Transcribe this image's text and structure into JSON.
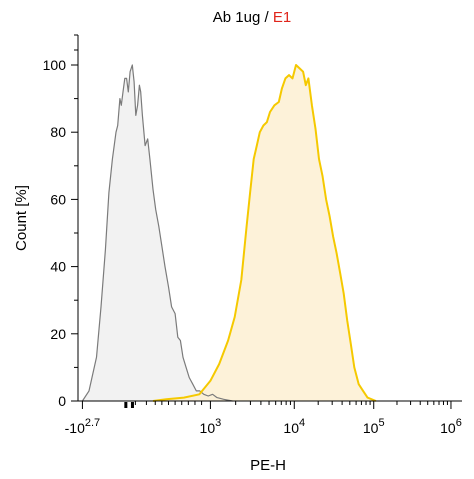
{
  "chart_data": {
    "type": "area",
    "title_parts": [
      {
        "text": "Ab 1ug / ",
        "color": "#000000"
      },
      {
        "text": "E1",
        "color": "#e0251b"
      }
    ],
    "xlabel": "PE-H",
    "ylabel": "Count [%]",
    "xscale": "biexponential",
    "xlim_exponent": [
      -2.7,
      6
    ],
    "ylim": [
      0,
      100
    ],
    "grid": false,
    "x_ticks": [
      {
        "base": "-10",
        "exp": "2.7"
      },
      {
        "base": "10",
        "exp": "3"
      },
      {
        "base": "10",
        "exp": "4"
      },
      {
        "base": "10",
        "exp": "5"
      },
      {
        "base": "10",
        "exp": "6"
      }
    ],
    "y_ticks": [
      "0",
      "20",
      "40",
      "60",
      "80",
      "100"
    ],
    "series": [
      {
        "style": "control",
        "stroke": "#7b7b7b",
        "fill": "#f0f0f0",
        "points": [
          [
            0.1,
            0
          ],
          [
            0.25,
            3
          ],
          [
            0.42,
            13
          ],
          [
            0.52,
            28
          ],
          [
            0.62,
            45
          ],
          [
            0.7,
            62
          ],
          [
            0.78,
            72
          ],
          [
            0.86,
            80
          ],
          [
            0.9,
            82
          ],
          [
            0.95,
            90
          ],
          [
            0.98,
            88
          ],
          [
            1.02,
            92
          ],
          [
            1.06,
            96
          ],
          [
            1.1,
            96
          ],
          [
            1.14,
            92
          ],
          [
            1.18,
            98
          ],
          [
            1.23,
            100
          ],
          [
            1.27,
            95
          ],
          [
            1.31,
            85
          ],
          [
            1.35,
            88
          ],
          [
            1.39,
            94
          ],
          [
            1.42,
            92
          ],
          [
            1.46,
            85
          ],
          [
            1.52,
            76
          ],
          [
            1.58,
            78
          ],
          [
            1.63,
            72
          ],
          [
            1.7,
            63
          ],
          [
            1.76,
            57
          ],
          [
            1.83,
            52
          ],
          [
            1.9,
            46
          ],
          [
            1.97,
            40
          ],
          [
            2.05,
            34
          ],
          [
            2.12,
            28
          ],
          [
            2.2,
            26
          ],
          [
            2.26,
            19
          ],
          [
            2.32,
            18
          ],
          [
            2.38,
            13
          ],
          [
            2.45,
            10
          ],
          [
            2.52,
            7
          ],
          [
            2.6,
            5
          ],
          [
            2.68,
            3
          ],
          [
            2.76,
            3
          ],
          [
            2.85,
            2
          ],
          [
            2.95,
            1.5
          ],
          [
            3.05,
            2
          ],
          [
            3.15,
            1
          ],
          [
            3.3,
            0.5
          ],
          [
            3.5,
            0
          ]
        ]
      },
      {
        "style": "sample",
        "stroke": "#f5c900",
        "fill": "#fdf0d2",
        "points": [
          [
            1.7,
            0
          ],
          [
            2.0,
            0.5
          ],
          [
            2.4,
            1
          ],
          [
            2.75,
            2
          ],
          [
            3.0,
            6
          ],
          [
            3.2,
            11
          ],
          [
            3.4,
            18
          ],
          [
            3.55,
            25
          ],
          [
            3.7,
            36
          ],
          [
            3.82,
            52
          ],
          [
            3.9,
            62
          ],
          [
            3.98,
            72
          ],
          [
            4.05,
            76
          ],
          [
            4.12,
            80
          ],
          [
            4.2,
            82
          ],
          [
            4.28,
            83
          ],
          [
            4.35,
            86
          ],
          [
            4.45,
            88
          ],
          [
            4.55,
            89
          ],
          [
            4.62,
            93
          ],
          [
            4.7,
            96
          ],
          [
            4.78,
            97
          ],
          [
            4.86,
            96
          ],
          [
            4.94,
            100
          ],
          [
            5.02,
            99
          ],
          [
            5.1,
            98
          ],
          [
            5.16,
            94
          ],
          [
            5.22,
            96
          ],
          [
            5.3,
            88
          ],
          [
            5.38,
            81
          ],
          [
            5.46,
            72
          ],
          [
            5.54,
            67
          ],
          [
            5.62,
            60
          ],
          [
            5.7,
            55
          ],
          [
            5.78,
            49
          ],
          [
            5.86,
            44
          ],
          [
            5.94,
            38
          ],
          [
            6.02,
            32
          ],
          [
            6.1,
            24
          ],
          [
            6.18,
            17
          ],
          [
            6.26,
            10
          ],
          [
            6.36,
            5
          ],
          [
            6.46,
            3
          ],
          [
            6.56,
            1
          ],
          [
            6.75,
            0
          ]
        ]
      }
    ]
  }
}
